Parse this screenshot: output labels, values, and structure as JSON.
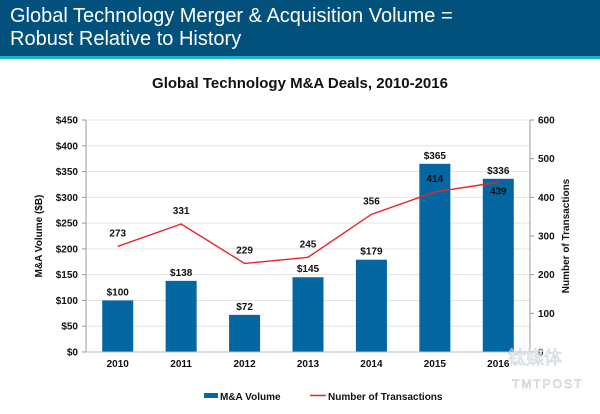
{
  "header": {
    "title": "Global Technology Merger & Acquisition Volume =\nRobust Relative to History"
  },
  "watermark": {
    "text_cn": "钛媒体",
    "text_en": "TMTPOST"
  },
  "colors": {
    "header_bg": "#02517d",
    "header_stripe": "#1fb5c9",
    "bar": "#0467a2",
    "line": "#e8242a",
    "grid": "#e3e3e3"
  },
  "chart_data": {
    "type": "bar",
    "title": "Global Technology M&A Deals, 2010-2016",
    "categories": [
      "2010",
      "2011",
      "2012",
      "2013",
      "2014",
      "2015",
      "2016"
    ],
    "series": [
      {
        "name": "M&A Volume",
        "type": "bar",
        "axis": "left",
        "values": [
          100,
          138,
          72,
          145,
          179,
          365,
          336
        ],
        "labels": [
          "$100",
          "$138",
          "$72",
          "$145",
          "$179",
          "$365",
          "$336"
        ]
      },
      {
        "name": "Number of Transactions",
        "type": "line",
        "axis": "right",
        "values": [
          273,
          331,
          229,
          245,
          356,
          414,
          439
        ],
        "labels": [
          "273",
          "331",
          "229",
          "245",
          "356",
          "414",
          "439"
        ]
      }
    ],
    "ylabel": "M&A Volume ($B)",
    "ylabel_right": "Number of Transactions",
    "xlabel": "",
    "ylim": [
      0,
      450
    ],
    "ylim_right": [
      0,
      600
    ],
    "yticks": [
      "$0",
      "$50",
      "$100",
      "$150",
      "$200",
      "$250",
      "$300",
      "$350",
      "$400",
      "$450"
    ],
    "yticks_right": [
      "0",
      "100",
      "200",
      "300",
      "400",
      "500",
      "600"
    ],
    "grid": true,
    "legend": {
      "placement": "bottom",
      "entries": [
        "M&A Volume",
        "Number of Transactions"
      ]
    }
  }
}
